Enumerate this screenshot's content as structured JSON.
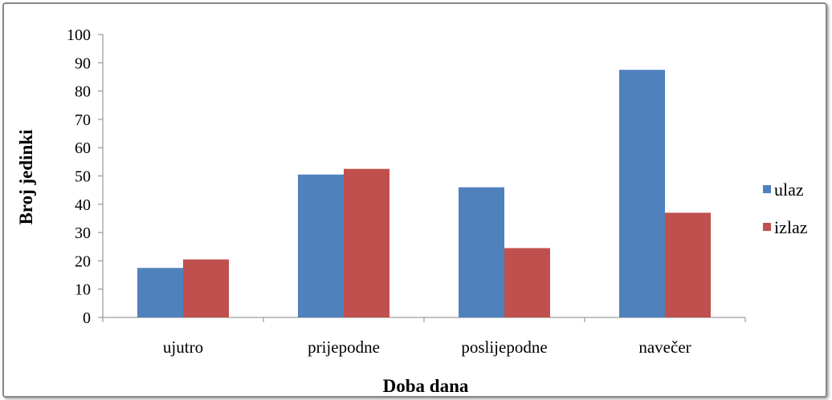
{
  "chart_data": {
    "type": "bar",
    "categories": [
      "ujutro",
      "prijepodne",
      "poslijepodne",
      "navečer"
    ],
    "series": [
      {
        "name": "ulaz",
        "values": [
          17.5,
          50.5,
          46,
          87.5
        ],
        "color": "#4F81BD"
      },
      {
        "name": "izlaz",
        "values": [
          20.5,
          52.5,
          24.5,
          37
        ],
        "color": "#C0504D"
      }
    ],
    "xlabel": "Doba dana",
    "ylabel": "Broj jedinki",
    "ylim": [
      0,
      100
    ],
    "yticks": [
      0,
      10,
      20,
      30,
      40,
      50,
      60,
      70,
      80,
      90,
      100
    ],
    "grid": false,
    "legend_position": "right"
  }
}
